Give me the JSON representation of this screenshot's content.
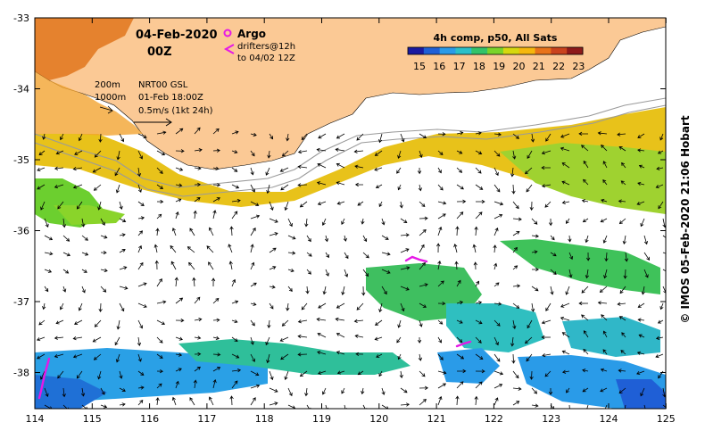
{
  "header": {
    "date": "04-Feb-2020",
    "time": "00Z",
    "argo_label": "Argo",
    "drifters_label_1": "drifters@12h",
    "drifters_label_2": "to 04/02 12Z",
    "composite_label": "4h comp, p50, All Sats"
  },
  "legend": {
    "contour_200": "200m",
    "contour_1000": "1000m",
    "product": "NRT00 GSL",
    "product_time": "01-Feb 18:00Z",
    "arrow_scale": "0.5m/s (1kt 24h)"
  },
  "colorbar": {
    "ticks": [
      "15",
      "16",
      "17",
      "18",
      "19",
      "20",
      "21",
      "22",
      "23"
    ],
    "colors": [
      "#1a1aa0",
      "#1f5fd6",
      "#2a9be8",
      "#2bc0c9",
      "#33c36a",
      "#7ad42a",
      "#d6d80f",
      "#f5b70e",
      "#e8731a",
      "#c9431e",
      "#8e1a1a"
    ]
  },
  "axes": {
    "x_ticks": [
      "114",
      "115",
      "116",
      "117",
      "118",
      "119",
      "120",
      "121",
      "122",
      "123",
      "124",
      "125"
    ],
    "y_ticks": [
      "-33",
      "-34",
      "-35",
      "-36",
      "-37",
      "-38"
    ]
  },
  "colors": {
    "land": "#fbc995",
    "drifter": "#e619e6",
    "contour": "#9a9a9a"
  },
  "credit": "© IMOS 05-Feb-2020 21:06 Hobart"
}
